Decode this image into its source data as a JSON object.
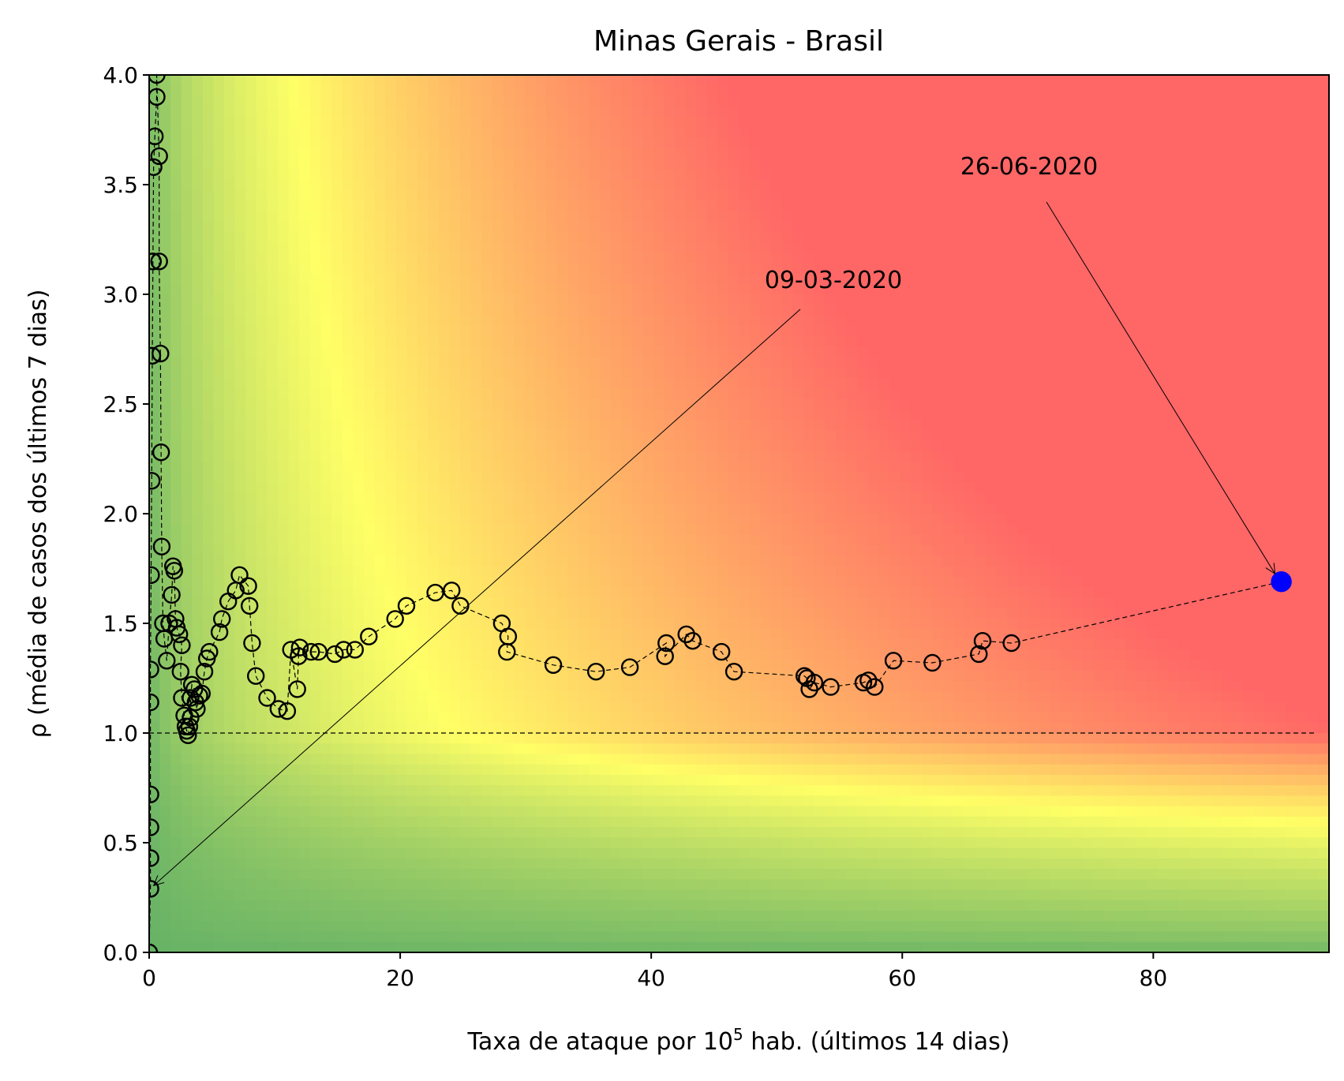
{
  "chart_data": {
    "type": "scatter",
    "title": "Minas Gerais - Brasil",
    "xlabel": {
      "prefix": "Taxa de ataque por 10",
      "superscript": "5",
      "suffix": " hab. (últimos 14 dias)"
    },
    "ylabel": "ρ (média de casos dos últimos 7 dias)",
    "xlim": [
      0,
      94
    ],
    "ylim": [
      0,
      4
    ],
    "x_ticks": [
      0,
      20,
      40,
      60,
      80
    ],
    "y_ticks": [
      "0.0",
      "0.5",
      "1.0",
      "1.5",
      "2.0",
      "2.5",
      "3.0",
      "3.5",
      "4.0"
    ],
    "grid": false,
    "background": "risk gradient: green (low) to yellow to red (high), boundary ~ x*y",
    "colors": {
      "green": "#66b266",
      "yellow": "#ffff66",
      "red": "#ff6666",
      "marker_edge": "#000000",
      "last_point": "#0000ff"
    },
    "reference_line_y": 1.0,
    "series": [
      {
        "points": [
          [
            0.0,
            0.0
          ],
          [
            0.1,
            0.29
          ],
          [
            0.1,
            0.43
          ],
          [
            0.1,
            0.57
          ],
          [
            0.1,
            0.72
          ],
          [
            0.1,
            1.14
          ],
          [
            0.1,
            1.29
          ],
          [
            0.15,
            1.72
          ],
          [
            0.2,
            2.15
          ],
          [
            0.25,
            2.72
          ],
          [
            0.3,
            3.15
          ],
          [
            0.35,
            3.58
          ],
          [
            0.45,
            3.72
          ],
          [
            0.6,
            3.9
          ],
          [
            0.6,
            4.0
          ],
          [
            0.8,
            3.63
          ],
          [
            0.8,
            3.15
          ],
          [
            0.9,
            2.73
          ],
          [
            0.95,
            2.28
          ],
          [
            1.0,
            1.85
          ],
          [
            1.1,
            1.5
          ],
          [
            1.2,
            1.43
          ],
          [
            1.4,
            1.33
          ],
          [
            1.6,
            1.5
          ],
          [
            1.8,
            1.63
          ],
          [
            1.9,
            1.76
          ],
          [
            2.0,
            1.74
          ],
          [
            2.1,
            1.52
          ],
          [
            2.2,
            1.48
          ],
          [
            2.4,
            1.45
          ],
          [
            2.6,
            1.4
          ],
          [
            2.5,
            1.28
          ],
          [
            2.6,
            1.16
          ],
          [
            2.8,
            1.08
          ],
          [
            2.9,
            1.03
          ],
          [
            3.0,
            1.01
          ],
          [
            3.1,
            0.99
          ],
          [
            3.2,
            1.03
          ],
          [
            3.3,
            1.07
          ],
          [
            3.3,
            1.16
          ],
          [
            3.4,
            1.22
          ],
          [
            3.6,
            1.2
          ],
          [
            3.7,
            1.14
          ],
          [
            3.8,
            1.11
          ],
          [
            4.0,
            1.17
          ],
          [
            4.2,
            1.18
          ],
          [
            4.4,
            1.28
          ],
          [
            4.6,
            1.34
          ],
          [
            4.8,
            1.37
          ],
          [
            5.6,
            1.46
          ],
          [
            5.8,
            1.52
          ],
          [
            6.3,
            1.6
          ],
          [
            6.9,
            1.65
          ],
          [
            7.2,
            1.72
          ],
          [
            7.9,
            1.67
          ],
          [
            8.0,
            1.58
          ],
          [
            8.2,
            1.41
          ],
          [
            8.5,
            1.26
          ],
          [
            9.4,
            1.16
          ],
          [
            10.3,
            1.11
          ],
          [
            11.0,
            1.1
          ],
          [
            11.3,
            1.38
          ],
          [
            11.8,
            1.2
          ],
          [
            11.9,
            1.35
          ],
          [
            12.0,
            1.39
          ],
          [
            12.9,
            1.37
          ],
          [
            13.5,
            1.37
          ],
          [
            14.8,
            1.36
          ],
          [
            15.5,
            1.38
          ],
          [
            16.4,
            1.38
          ],
          [
            17.5,
            1.44
          ],
          [
            19.6,
            1.52
          ],
          [
            20.5,
            1.58
          ],
          [
            22.8,
            1.64
          ],
          [
            24.1,
            1.65
          ],
          [
            24.8,
            1.58
          ],
          [
            28.1,
            1.5
          ],
          [
            28.6,
            1.44
          ],
          [
            28.5,
            1.37
          ],
          [
            32.2,
            1.31
          ],
          [
            35.6,
            1.28
          ],
          [
            38.3,
            1.3
          ],
          [
            41.2,
            1.41
          ],
          [
            41.1,
            1.35
          ],
          [
            42.8,
            1.45
          ],
          [
            43.3,
            1.42
          ],
          [
            45.6,
            1.37
          ],
          [
            46.6,
            1.28
          ],
          [
            52.2,
            1.26
          ],
          [
            52.4,
            1.25
          ],
          [
            52.6,
            1.2
          ],
          [
            53.0,
            1.23
          ],
          [
            54.3,
            1.21
          ],
          [
            56.9,
            1.23
          ],
          [
            57.3,
            1.24
          ],
          [
            57.8,
            1.21
          ],
          [
            59.3,
            1.33
          ],
          [
            62.4,
            1.32
          ],
          [
            66.1,
            1.36
          ],
          [
            66.4,
            1.42
          ],
          [
            68.7,
            1.41
          ],
          [
            90.2,
            1.69
          ]
        ]
      }
    ],
    "annotations": [
      {
        "text": "09-03-2020",
        "target": [
          0.1,
          0.29
        ]
      },
      {
        "text": "26-06-2020",
        "target": [
          90.2,
          1.69
        ]
      }
    ]
  }
}
